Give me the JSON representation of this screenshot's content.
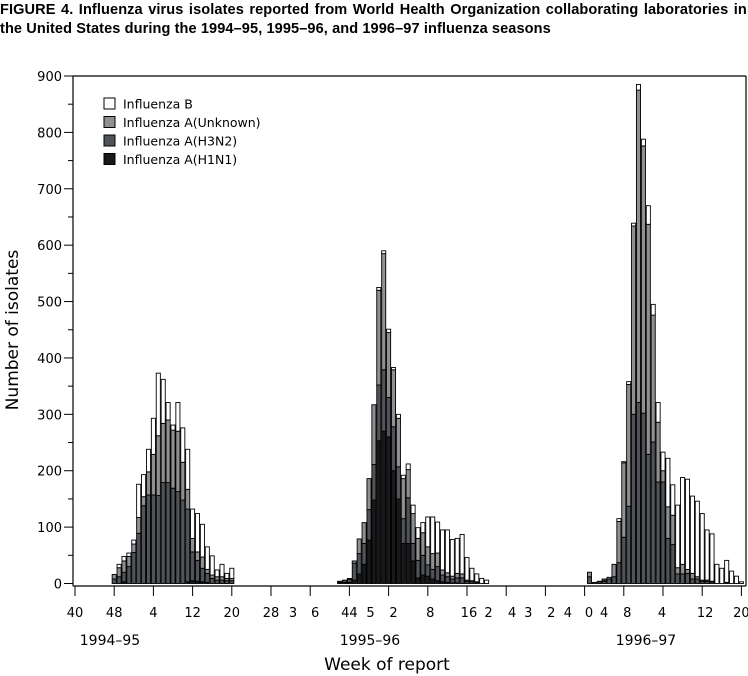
{
  "chart_data": {
    "type": "bar",
    "stacked": true,
    "title": "FIGURE 4. Influenza virus isolates reported from World Health Organization collaborating laboratories in the United States during the 1994–95, 1995–96, and 1996–97 influenza seasons",
    "xlabel": "Week of report",
    "ylabel": "Number of isolates",
    "ylim": [
      0,
      900
    ],
    "yticks": [
      0,
      100,
      200,
      300,
      400,
      500,
      600,
      700,
      800,
      900
    ],
    "xlim": [
      0,
      137
    ],
    "xtick_positions": [
      0,
      8,
      16,
      24,
      32,
      40,
      48,
      56,
      64,
      72,
      80,
      88,
      96,
      104,
      112,
      120,
      128,
      136
    ],
    "xtick_labels": [
      {
        "pos": 0,
        "label": "40"
      },
      {
        "pos": 8,
        "label": "48"
      },
      {
        "pos": 16,
        "label": "4"
      },
      {
        "pos": 24,
        "label": "12"
      },
      {
        "pos": 32,
        "label": "20"
      },
      {
        "pos": 40,
        "label": "28"
      },
      {
        "pos": 44.5,
        "label": "3"
      },
      {
        "pos": 49,
        "label": "6"
      },
      {
        "pos": 56,
        "label": "44"
      },
      {
        "pos": 60.3,
        "label": "5"
      },
      {
        "pos": 65,
        "label": "2"
      },
      {
        "pos": 72.5,
        "label": "8"
      },
      {
        "pos": 80.4,
        "label": "16"
      },
      {
        "pos": 84.4,
        "label": "2"
      },
      {
        "pos": 89.2,
        "label": "4"
      },
      {
        "pos": 92.5,
        "label": "3"
      },
      {
        "pos": 97.2,
        "label": "2"
      },
      {
        "pos": 100.6,
        "label": "4"
      },
      {
        "pos": 104.9,
        "label": "0"
      },
      {
        "pos": 108,
        "label": "4"
      },
      {
        "pos": 112.7,
        "label": "8"
      },
      {
        "pos": 119.8,
        "label": "4"
      },
      {
        "pos": 128.6,
        "label": "12"
      },
      {
        "pos": 136,
        "label": "20"
      }
    ],
    "season_labels": [
      "1994–95",
      "1995–96",
      "1996–97"
    ],
    "legend_position": "top-left",
    "grid": false,
    "x": [
      8,
      9,
      10,
      11,
      12,
      13,
      14,
      15,
      16,
      17,
      18,
      19,
      20,
      21,
      22,
      23,
      24,
      25,
      26,
      27,
      28,
      29,
      30,
      31,
      32,
      54,
      55,
      56,
      57,
      58,
      59,
      60,
      61,
      62,
      63,
      64,
      65,
      66,
      67,
      68,
      69,
      70,
      71,
      72,
      73,
      74,
      75,
      76,
      77,
      78,
      79,
      80,
      81,
      82,
      83,
      84,
      105,
      106,
      107,
      108,
      109,
      110,
      111,
      112,
      113,
      114,
      115,
      116,
      117,
      118,
      119,
      120,
      121,
      122,
      123,
      124,
      125,
      126,
      127,
      128,
      129,
      130,
      131,
      132,
      133,
      134,
      135,
      136
    ],
    "series": [
      {
        "name": "Influenza A(H1N1)",
        "color": "#18191b",
        "values": [
          0,
          0,
          3,
          0,
          0,
          0,
          0,
          0,
          0,
          0,
          0,
          0,
          0,
          0,
          0,
          3,
          5,
          4,
          3,
          2,
          0,
          0,
          0,
          0,
          0,
          2,
          2,
          2,
          6,
          17,
          34,
          77,
          148,
          253,
          270,
          260,
          200,
          150,
          71,
          71,
          40,
          10,
          15,
          13,
          8,
          5,
          3,
          2,
          1,
          1,
          0,
          0,
          0,
          0,
          0,
          0,
          0,
          0,
          0,
          0,
          0,
          0,
          0,
          0,
          0,
          0,
          0,
          0,
          0,
          0,
          0,
          0,
          0,
          0,
          0,
          0,
          0,
          0,
          0,
          0,
          0,
          0,
          0,
          0,
          0,
          0,
          0,
          0
        ]
      },
      {
        "name": "Influenza A(H3N2)",
        "color": "#505458",
        "values": [
          8,
          12,
          17,
          30,
          55,
          89,
          138,
          157,
          157,
          156,
          179,
          179,
          169,
          163,
          148,
          129,
          51,
          37,
          24,
          16,
          9,
          6,
          6,
          5,
          5,
          2,
          4,
          5,
          30,
          36,
          37,
          54,
          63,
          99,
          109,
          70,
          78,
          57,
          44,
          81,
          31,
          31,
          35,
          20,
          17,
          25,
          12,
          10,
          7,
          9,
          10,
          4,
          3,
          2,
          0,
          0,
          12,
          2,
          3,
          4,
          8,
          12,
          37,
          82,
          137,
          300,
          321,
          302,
          229,
          251,
          180,
          180,
          80,
          69,
          17,
          17,
          18,
          8,
          8,
          4,
          4,
          3,
          0,
          0,
          2,
          0,
          0,
          0
        ]
      },
      {
        "name": "Influenza A(Unknown)",
        "color": "#909090",
        "values": [
          8,
          16,
          20,
          18,
          15,
          28,
          16,
          41,
          72,
          106,
          105,
          111,
          103,
          107,
          67,
          35,
          24,
          15,
          20,
          7,
          6,
          6,
          6,
          4,
          4,
          0,
          0,
          2,
          4,
          26,
          37,
          55,
          106,
          168,
          206,
          115,
          101,
          86,
          71,
          50,
          53,
          39,
          40,
          32,
          28,
          24,
          9,
          7,
          5,
          8,
          7,
          2,
          2,
          1,
          0,
          0,
          8,
          0,
          1,
          2,
          3,
          22,
          73,
          132,
          216,
          334,
          554,
          474,
          408,
          225,
          106,
          20,
          56,
          52,
          11,
          17,
          7,
          10,
          4,
          2,
          2,
          1,
          0,
          0,
          0,
          0,
          0,
          0
        ]
      },
      {
        "name": "Influenza B",
        "color": "#ffffff",
        "values": [
          0,
          6,
          8,
          6,
          7,
          59,
          39,
          40,
          64,
          111,
          78,
          31,
          9,
          51,
          61,
          71,
          52,
          68,
          58,
          40,
          34,
          12,
          22,
          9,
          18,
          0,
          0,
          0,
          0,
          0,
          0,
          0,
          0,
          5,
          5,
          6,
          4,
          7,
          6,
          10,
          15,
          19,
          18,
          53,
          65,
          55,
          71,
          76,
          65,
          62,
          70,
          40,
          22,
          14,
          9,
          6,
          0,
          0,
          0,
          2,
          0,
          0,
          5,
          2,
          5,
          5,
          10,
          12,
          33,
          19,
          35,
          33,
          86,
          54,
          111,
          154,
          160,
          137,
          134,
          118,
          89,
          84,
          34,
          27,
          39,
          22,
          13,
          3
        ]
      }
    ],
    "legend_order": [
      "Influenza B",
      "Influenza A(Unknown)",
      "Influenza A(H3N2)",
      "Influenza A(H1N1)"
    ]
  }
}
